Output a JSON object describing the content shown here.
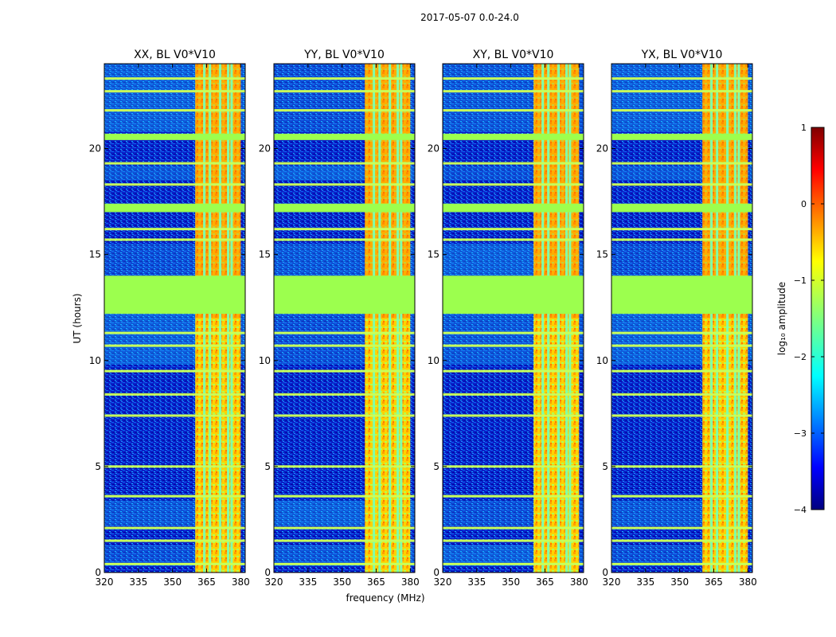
{
  "figure": {
    "suptitle": "2017-05-07 0.0-24.0",
    "xlabel": "frequency (MHz)",
    "ylabel": "UT (hours)"
  },
  "chart_data": {
    "type": "heatmap",
    "xlim": [
      320,
      382
    ],
    "ylim": [
      0,
      24
    ],
    "xticks": [
      320,
      335,
      350,
      365,
      380
    ],
    "yticks": [
      0,
      5,
      10,
      15,
      20
    ],
    "panels": [
      {
        "title": "XX, BL V0*V10"
      },
      {
        "title": "YY, BL V0*V10"
      },
      {
        "title": "XY, BL V0*V10"
      },
      {
        "title": "YX, BL V0*V10"
      }
    ],
    "rfi_band_mhz": [
      360,
      380
    ],
    "rfi_channels_mhz": [
      364,
      366.5,
      371,
      374.5,
      376
    ],
    "gap_hours": [
      12.2,
      14.0
    ],
    "flagged_hours": [
      0.4,
      1.5,
      2.1,
      3.6,
      5.0,
      7.4,
      8.4,
      9.5,
      10.7,
      11.3,
      15.7,
      16.2,
      17.2,
      18.3,
      19.3,
      20.6,
      21.8,
      22.7,
      23.3
    ],
    "colorbar": {
      "label": "log₁₀ amplitude",
      "range": [
        -4,
        1
      ],
      "ticks": [
        "1",
        "0",
        "−1",
        "−2",
        "−3",
        "−4"
      ],
      "cmap": [
        "#00007f",
        "#0000ff",
        "#007fff",
        "#00ffff",
        "#7fff7f",
        "#ffff00",
        "#ff7f00",
        "#ff0000",
        "#7f0000"
      ]
    }
  }
}
